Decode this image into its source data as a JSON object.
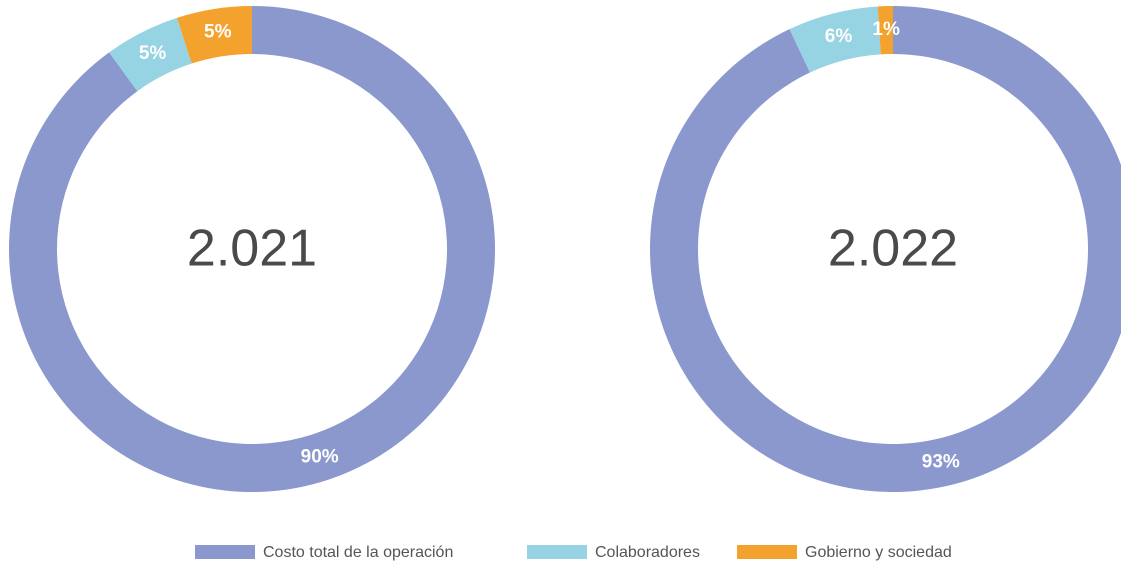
{
  "chart_data": [
    {
      "type": "pie",
      "title": "2.021",
      "categories": [
        "Costo total de la operación",
        "Colaboradores",
        "Gobierno y sociedad"
      ],
      "values": [
        90,
        5,
        5
      ],
      "value_labels": [
        "90%",
        "5%",
        "5%"
      ],
      "colors": [
        "#8a98cd",
        "#96d3e3",
        "#f4a22e"
      ]
    },
    {
      "type": "pie",
      "title": "2.022",
      "categories": [
        "Costo total de la operación",
        "Colaboradores",
        "Gobierno y sociedad"
      ],
      "values": [
        93,
        6,
        1
      ],
      "value_labels": [
        "93%",
        "6%",
        "1%"
      ],
      "colors": [
        "#8a98cd",
        "#96d3e3",
        "#f4a22e"
      ]
    }
  ]
}
